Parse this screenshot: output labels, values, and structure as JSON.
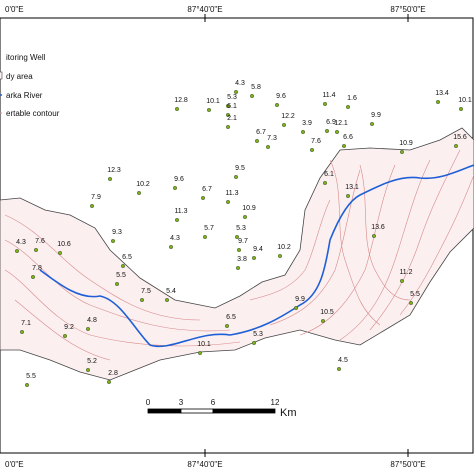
{
  "map": {
    "top_labels": [
      "0'0\"E",
      "87°40'0\"E",
      "87°50'0\"E"
    ],
    "bottom_labels": [
      "0'0\"E",
      "87°40'0\"E",
      "87°50'0\"E"
    ],
    "legend": [
      "itoring Well",
      "dy area",
      "arka River",
      "ertable contour"
    ],
    "scale_bar": {
      "ticks": [
        0,
        3,
        6,
        12
      ],
      "unit": "Km"
    },
    "wells": [
      12.8,
      10.1,
      5.3,
      5.8,
      4.3,
      6.1,
      9.6,
      11.4,
      1.6,
      13.4,
      10.1,
      2.1,
      6.7,
      7.3,
      12.2,
      6.9,
      3.9,
      12.1,
      9.9,
      15.6,
      6.6,
      10.9,
      7.6,
      12.3,
      9.5,
      10.2,
      9.6,
      6.7,
      11.3,
      6.1,
      13.1,
      11.3,
      10.9,
      7.9,
      5.7,
      5.3,
      4.3,
      9.3,
      6.5,
      3.8,
      4.3,
      7.6,
      10.6,
      7.8,
      5.5,
      9.7,
      9.4,
      10.2,
      13.6,
      11.2,
      7.5,
      5.4,
      9.9,
      10.5,
      5.5,
      7.1,
      9.2,
      4.8,
      6.5,
      5.3,
      10.1,
      5.2,
      2.8,
      4.5,
      5.5
    ]
  }
}
